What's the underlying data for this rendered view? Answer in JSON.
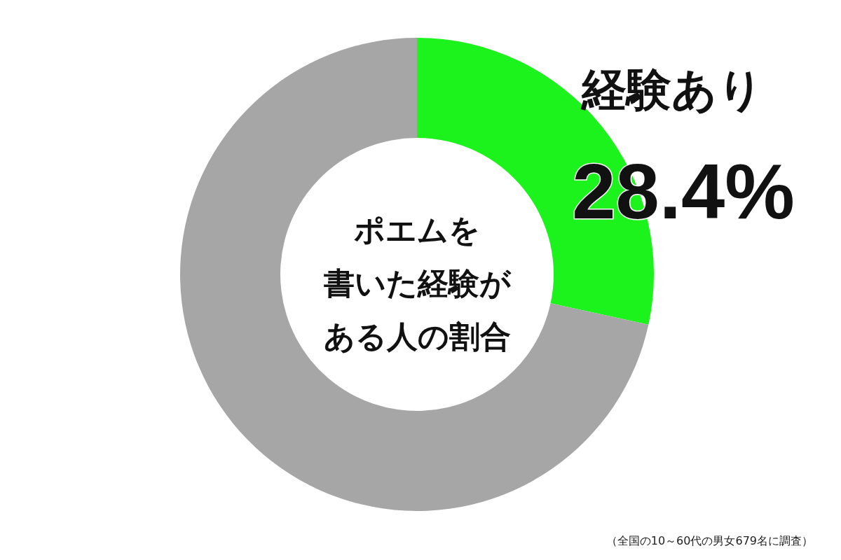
{
  "chart_data": {
    "type": "donut",
    "title": "ポエムを書いた経験がある人の割合",
    "categories": [
      "経験あり",
      null
    ],
    "values": [
      28.4,
      71.6
    ],
    "colors": [
      "#1cf21c",
      "#a6a6a6"
    ],
    "value_labels": [
      "28.4%",
      null
    ],
    "legend": false,
    "annotations": [
      "（全国の10～60代の男女679名に調査）"
    ]
  }
}
